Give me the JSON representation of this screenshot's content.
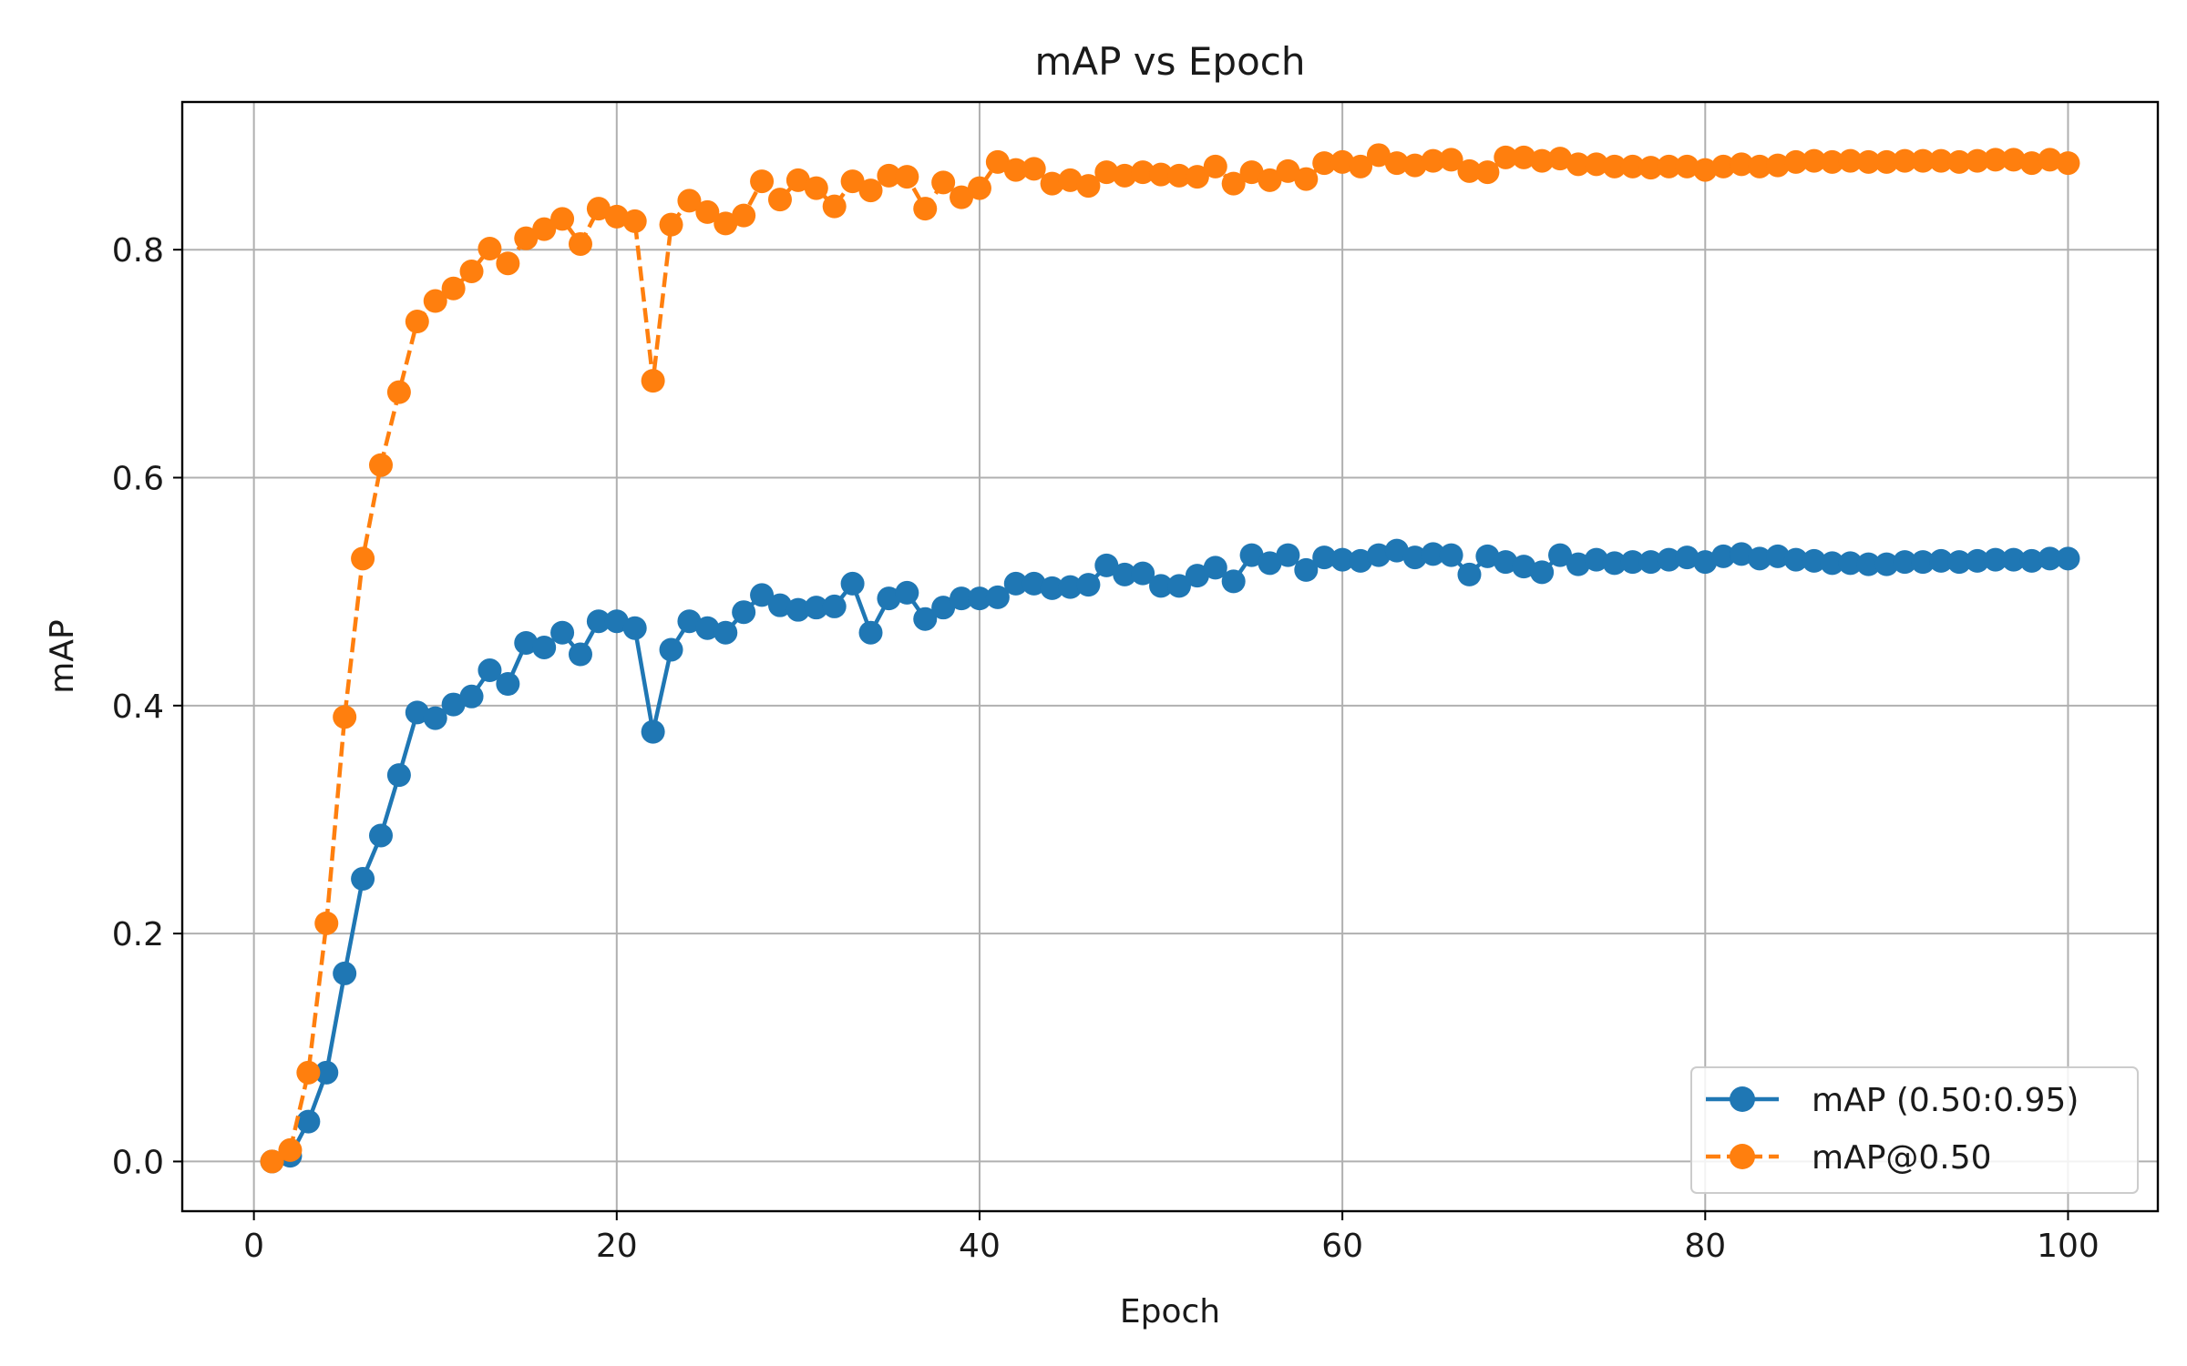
{
  "chart_data": {
    "type": "line",
    "title": "mAP vs Epoch",
    "xlabel": "Epoch",
    "ylabel": "mAP",
    "xlim": [
      -3.95,
      104.95
    ],
    "ylim": [
      -0.0436,
      0.9296
    ],
    "xticks": [
      0,
      20,
      40,
      60,
      80,
      100
    ],
    "yticks": [
      0.0,
      0.2,
      0.4,
      0.6,
      0.8
    ],
    "xtick_labels": [
      "0",
      "20",
      "40",
      "60",
      "80",
      "100"
    ],
    "ytick_labels": [
      "0.0",
      "0.2",
      "0.4",
      "0.6",
      "0.8"
    ],
    "grid": true,
    "legend_position": "lower-right",
    "x": [
      1,
      2,
      3,
      4,
      5,
      6,
      7,
      8,
      9,
      10,
      11,
      12,
      13,
      14,
      15,
      16,
      17,
      18,
      19,
      20,
      21,
      22,
      23,
      24,
      25,
      26,
      27,
      28,
      29,
      30,
      31,
      32,
      33,
      34,
      35,
      36,
      37,
      38,
      39,
      40,
      41,
      42,
      43,
      44,
      45,
      46,
      47,
      48,
      49,
      50,
      51,
      52,
      53,
      54,
      55,
      56,
      57,
      58,
      59,
      60,
      61,
      62,
      63,
      64,
      65,
      66,
      67,
      68,
      69,
      70,
      71,
      72,
      73,
      74,
      75,
      76,
      77,
      78,
      79,
      80,
      81,
      82,
      83,
      84,
      85,
      86,
      87,
      88,
      89,
      90,
      91,
      92,
      93,
      94,
      95,
      96,
      97,
      98,
      99,
      100
    ],
    "series": [
      {
        "name": "mAP (0.50:0.95)",
        "color": "#1f77b4",
        "linestyle": "solid",
        "marker": "circle",
        "values": [
          0.0,
          0.005,
          0.035,
          0.078,
          0.165,
          0.248,
          0.286,
          0.339,
          0.394,
          0.389,
          0.401,
          0.408,
          0.431,
          0.419,
          0.455,
          0.451,
          0.464,
          0.445,
          0.474,
          0.474,
          0.468,
          0.377,
          0.449,
          0.474,
          0.468,
          0.464,
          0.482,
          0.497,
          0.488,
          0.484,
          0.486,
          0.487,
          0.507,
          0.464,
          0.494,
          0.499,
          0.476,
          0.486,
          0.494,
          0.494,
          0.495,
          0.507,
          0.507,
          0.503,
          0.504,
          0.506,
          0.523,
          0.515,
          0.516,
          0.505,
          0.505,
          0.514,
          0.521,
          0.509,
          0.532,
          0.525,
          0.532,
          0.519,
          0.53,
          0.528,
          0.527,
          0.532,
          0.536,
          0.53,
          0.533,
          0.532,
          0.515,
          0.531,
          0.526,
          0.522,
          0.517,
          0.532,
          0.524,
          0.528,
          0.525,
          0.526,
          0.526,
          0.528,
          0.53,
          0.526,
          0.531,
          0.533,
          0.529,
          0.531,
          0.528,
          0.527,
          0.525,
          0.525,
          0.524,
          0.524,
          0.526,
          0.526,
          0.527,
          0.526,
          0.527,
          0.528,
          0.528,
          0.527,
          0.529,
          0.529
        ]
      },
      {
        "name": "mAP@0.50",
        "color": "#ff7f0e",
        "linestyle": "dashed",
        "marker": "circle",
        "values": [
          0.0,
          0.01,
          0.078,
          0.209,
          0.39,
          0.529,
          0.611,
          0.675,
          0.737,
          0.755,
          0.766,
          0.781,
          0.801,
          0.788,
          0.81,
          0.818,
          0.827,
          0.805,
          0.836,
          0.829,
          0.825,
          0.685,
          0.822,
          0.843,
          0.833,
          0.823,
          0.83,
          0.86,
          0.844,
          0.861,
          0.854,
          0.838,
          0.86,
          0.852,
          0.865,
          0.864,
          0.836,
          0.859,
          0.846,
          0.854,
          0.877,
          0.87,
          0.871,
          0.858,
          0.861,
          0.856,
          0.868,
          0.865,
          0.868,
          0.866,
          0.865,
          0.864,
          0.873,
          0.858,
          0.868,
          0.861,
          0.869,
          0.862,
          0.876,
          0.877,
          0.873,
          0.883,
          0.876,
          0.874,
          0.878,
          0.879,
          0.869,
          0.868,
          0.881,
          0.881,
          0.878,
          0.88,
          0.875,
          0.875,
          0.873,
          0.873,
          0.872,
          0.873,
          0.873,
          0.87,
          0.873,
          0.875,
          0.873,
          0.874,
          0.877,
          0.878,
          0.877,
          0.878,
          0.877,
          0.877,
          0.878,
          0.878,
          0.878,
          0.877,
          0.878,
          0.879,
          0.879,
          0.876,
          0.879,
          0.876
        ]
      }
    ]
  }
}
